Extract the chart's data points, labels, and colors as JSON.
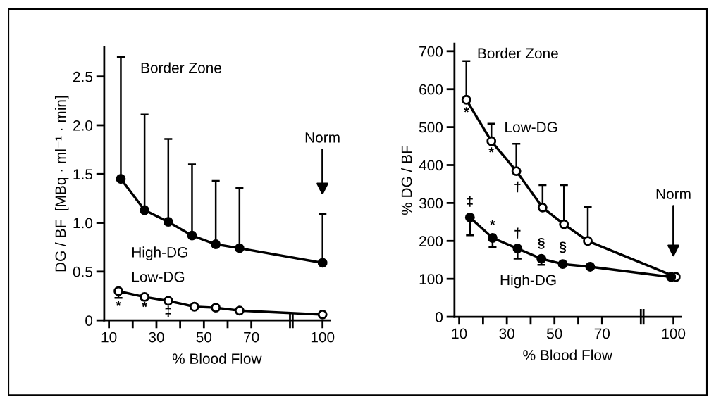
{
  "chart_data": [
    {
      "type": "line",
      "xlabel": "% Blood Flow",
      "ylabel": "DG / BF  [MBq · ml⁻¹ · min]",
      "xlim": [
        8,
        103
      ],
      "ylim": [
        0,
        2.8
      ],
      "xticks": [
        10,
        {
          "value": 20,
          "label": null
        },
        30,
        {
          "value": 40,
          "label": null
        },
        50,
        {
          "value": 60,
          "label": null
        },
        70,
        100
      ],
      "yticks": [
        0,
        0.5,
        {
          "value": 1,
          "label": "1.0"
        },
        1.5,
        {
          "value": 2,
          "label": "2.0"
        },
        2.5
      ],
      "marker": "circle",
      "line_style": "solid",
      "grid": false,
      "legend": false,
      "series": [
        {
          "name": "High-DG",
          "color": "#000000",
          "x": [
            15,
            25,
            35,
            45,
            55,
            65,
            100
          ],
          "values": [
            1.45,
            1.13,
            1.01,
            0.87,
            0.78,
            0.74,
            0.59
          ],
          "errors": [
            [
              1.45,
              2.7
            ],
            [
              1.13,
              2.11
            ],
            [
              1.01,
              1.86
            ],
            [
              0.87,
              1.6
            ],
            [
              0.78,
              1.43
            ],
            [
              0.74,
              1.36
            ],
            [
              0.59,
              1.09
            ]
          ]
        },
        {
          "name": "Low-DG",
          "color": "#000000",
          "x": [
            14,
            25,
            35,
            46,
            55,
            65,
            100
          ],
          "values": [
            0.3,
            0.24,
            0.2,
            0.14,
            0.13,
            0.1,
            0.06
          ],
          "errors": [
            [
              0.23,
              0.3
            ],
            null,
            null,
            [
              0.13,
              0.14
            ],
            [
              0.11,
              0.13
            ],
            [
              0.09,
              0.1
            ],
            null
          ]
        }
      ],
      "annotations": [
        "Border Zone",
        "Norm",
        "*",
        "*",
        "‡"
      ]
    },
    {
      "type": "line",
      "xlabel": "% Blood Flow",
      "ylabel": "% DG / BF",
      "xlim": [
        8,
        103
      ],
      "ylim": [
        0,
        720
      ],
      "xticks": [
        10,
        {
          "value": 20,
          "label": null
        },
        30,
        {
          "value": 40,
          "label": null
        },
        50,
        {
          "value": 60,
          "label": null
        },
        70,
        100
      ],
      "yticks": [
        0,
        100,
        200,
        300,
        400,
        500,
        600,
        700
      ],
      "marker": "circle",
      "line_style": "solid",
      "grid": false,
      "legend": false,
      "series": [
        {
          "name": "Low-DG",
          "color": "#000000",
          "x": [
            13,
            23.5,
            34,
            45,
            54,
            64,
            101
          ],
          "values": [
            572,
            463,
            384,
            288,
            244,
            200,
            105
          ],
          "errors": [
            [
              572,
              674
            ],
            [
              463,
              509
            ],
            [
              384,
              456
            ],
            [
              288,
              347
            ],
            [
              244,
              347
            ],
            [
              200,
              289
            ],
            null
          ]
        },
        {
          "name": "High-DG",
          "color": "#000000",
          "x": [
            14.5,
            24,
            34.5,
            44.5,
            53.5,
            65,
            99
          ],
          "values": [
            262,
            208,
            180,
            153,
            139,
            132,
            105
          ],
          "errors": [
            [
              215,
              262
            ],
            [
              184,
              208
            ],
            [
              153,
              180
            ],
            [
              137,
              153
            ],
            null,
            null,
            null
          ]
        }
      ],
      "annotations": [
        "Border Zone",
        "Norm",
        "*",
        "*",
        "†",
        "‡",
        "*",
        "†",
        "§",
        "§"
      ]
    }
  ]
}
